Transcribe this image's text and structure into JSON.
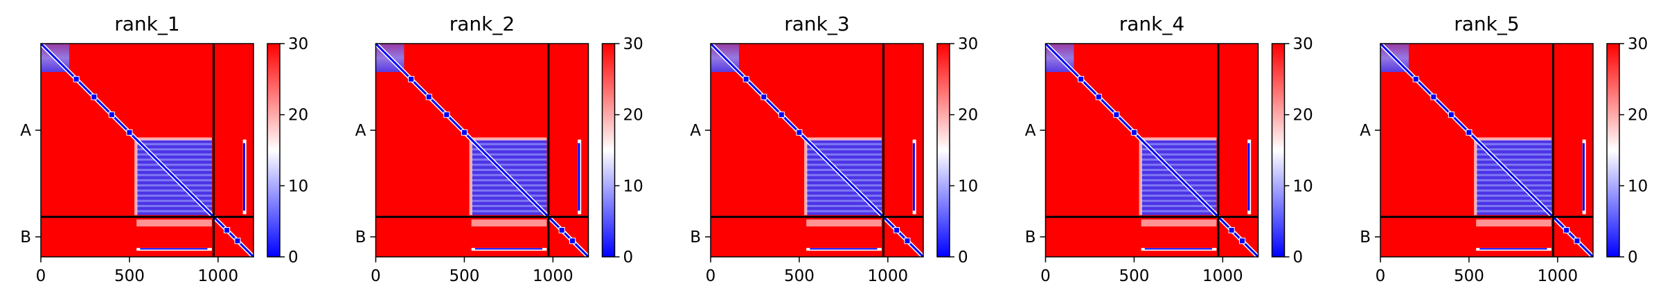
{
  "chart_data": [
    {
      "type": "heatmap",
      "title": "rank_1",
      "xlabel": "",
      "ylabel": "",
      "xlim": [
        0,
        1200
      ],
      "x_ticks": [
        0,
        500,
        1000
      ],
      "y_tick_labels": [
        "A",
        "B"
      ],
      "chain_break": 975,
      "colorbar": {
        "min": 0,
        "max": 30,
        "ticks": [
          0,
          10,
          20,
          30
        ],
        "colors": [
          "#0000ff",
          "#ffffff",
          "#ff0000"
        ]
      }
    },
    {
      "type": "heatmap",
      "title": "rank_2",
      "xlabel": "",
      "ylabel": "",
      "xlim": [
        0,
        1200
      ],
      "x_ticks": [
        0,
        500,
        1000
      ],
      "y_tick_labels": [
        "A",
        "B"
      ],
      "chain_break": 975,
      "colorbar": {
        "min": 0,
        "max": 30,
        "ticks": [
          0,
          10,
          20,
          30
        ],
        "colors": [
          "#0000ff",
          "#ffffff",
          "#ff0000"
        ]
      }
    },
    {
      "type": "heatmap",
      "title": "rank_3",
      "xlabel": "",
      "ylabel": "",
      "xlim": [
        0,
        1200
      ],
      "x_ticks": [
        0,
        500,
        1000
      ],
      "y_tick_labels": [
        "A",
        "B"
      ],
      "chain_break": 975,
      "colorbar": {
        "min": 0,
        "max": 30,
        "ticks": [
          0,
          10,
          20,
          30
        ],
        "colors": [
          "#0000ff",
          "#ffffff",
          "#ff0000"
        ]
      }
    },
    {
      "type": "heatmap",
      "title": "rank_4",
      "xlabel": "",
      "ylabel": "",
      "xlim": [
        0,
        1200
      ],
      "x_ticks": [
        0,
        500,
        1000
      ],
      "y_tick_labels": [
        "A",
        "B"
      ],
      "chain_break": 975,
      "colorbar": {
        "min": 0,
        "max": 30,
        "ticks": [
          0,
          10,
          20,
          30
        ],
        "colors": [
          "#0000ff",
          "#ffffff",
          "#ff0000"
        ]
      }
    },
    {
      "type": "heatmap",
      "title": "rank_5",
      "xlabel": "",
      "ylabel": "",
      "xlim": [
        0,
        1200
      ],
      "x_ticks": [
        0,
        500,
        1000
      ],
      "y_tick_labels": [
        "A",
        "B"
      ],
      "chain_break": 975,
      "colorbar": {
        "min": 0,
        "max": 30,
        "ticks": [
          0,
          10,
          20,
          30
        ],
        "colors": [
          "#0000ff",
          "#ffffff",
          "#ff0000"
        ]
      }
    }
  ]
}
